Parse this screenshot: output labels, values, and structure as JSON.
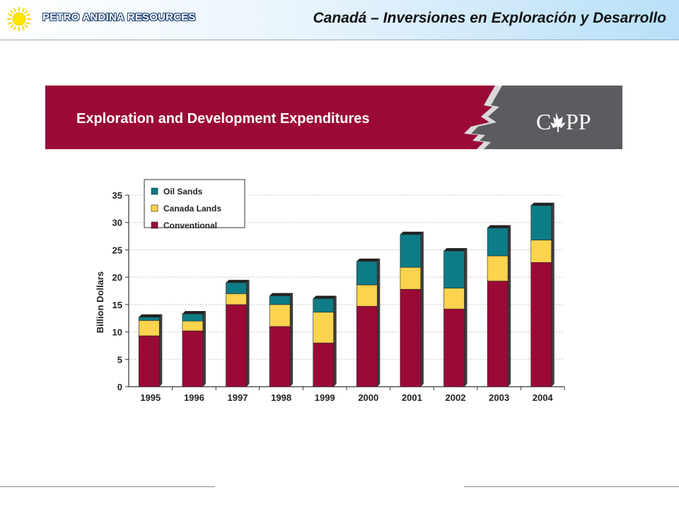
{
  "header": {
    "company": "PETRO ANDINA RESOURCES",
    "title": "Canadá – Inversiones en Exploración y Desarrollo",
    "logo_icon": "sun-logo-icon"
  },
  "banner": {
    "title": "Exploration and Development Expenditures",
    "logo_text": "CAPP",
    "colors": {
      "maroon": "#9b0a37",
      "gray": "#5a5c5f"
    }
  },
  "chart_data": {
    "type": "bar",
    "stacked": true,
    "title": "",
    "xlabel": "",
    "ylabel": "Billion Dollars",
    "ylim": [
      0,
      35
    ],
    "yticks": [
      0,
      5,
      10,
      15,
      20,
      25,
      30,
      35
    ],
    "grid": true,
    "legend_position": "top-left",
    "categories": [
      "1995",
      "1996",
      "1997",
      "1998",
      "1999",
      "2000",
      "2001",
      "2002",
      "2003",
      "2004"
    ],
    "series": [
      {
        "name": "Conventional",
        "color": "#9b0a37",
        "values": [
          9.3,
          10.2,
          15.0,
          11.0,
          8.0,
          14.7,
          17.8,
          14.2,
          19.3,
          22.7
        ]
      },
      {
        "name": "Canada Lands",
        "color": "#fcd34d",
        "values": [
          2.8,
          1.8,
          2.0,
          4.0,
          5.6,
          3.9,
          4.0,
          3.8,
          4.6,
          4.1
        ]
      },
      {
        "name": "Oil Sands",
        "color": "#0e7c86",
        "values": [
          0.6,
          1.3,
          2.0,
          1.6,
          2.5,
          4.3,
          6.0,
          6.8,
          5.1,
          6.3
        ]
      }
    ],
    "legend_order": [
      "Oil Sands",
      "Canada Lands",
      "Conventional"
    ]
  }
}
